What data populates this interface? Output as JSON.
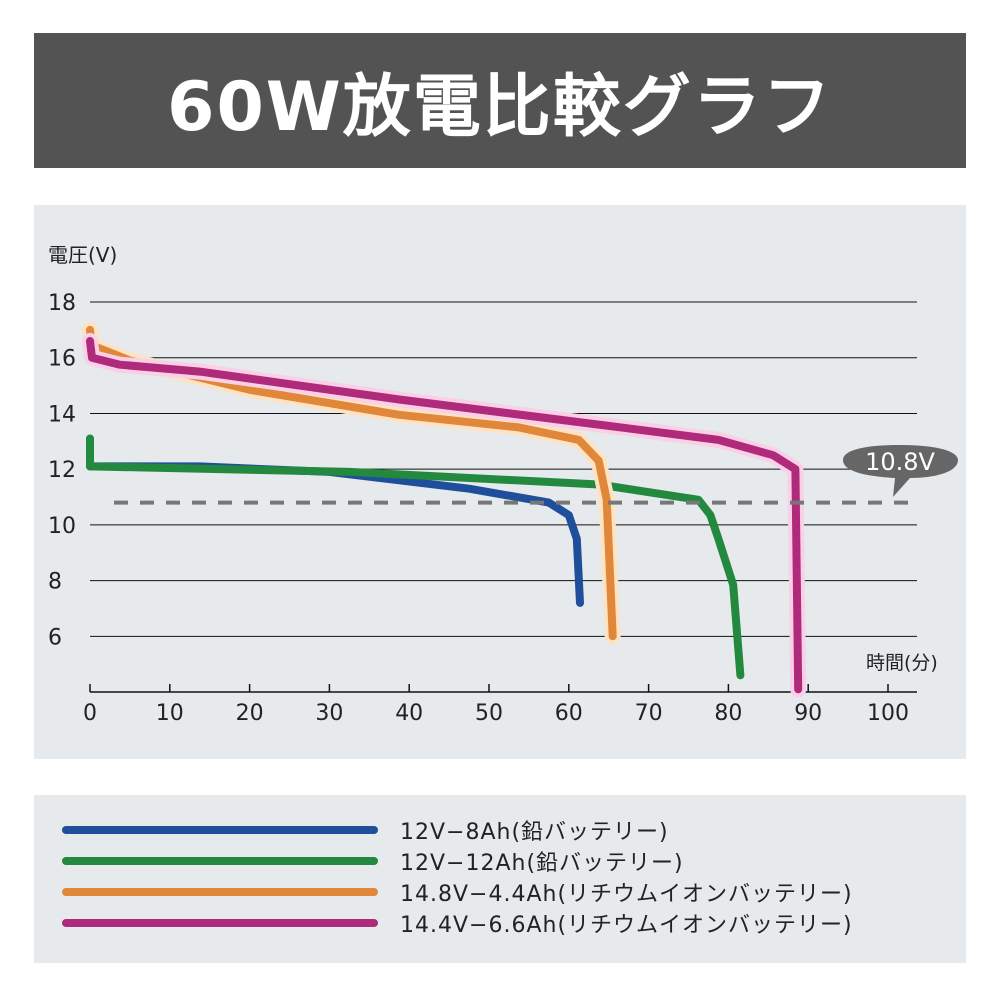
{
  "title": "60W放電比較グラフ",
  "chart_data": {
    "type": "line",
    "ylabel": "電圧(V)",
    "xlabel": "時間(分)",
    "xlim": [
      0,
      100
    ],
    "ylim": [
      4,
      18
    ],
    "xticks": [
      "0",
      "10",
      "20",
      "30",
      "40",
      "50",
      "60",
      "70",
      "80",
      "90",
      "100"
    ],
    "yticks": [
      "6",
      "8",
      "10",
      "12",
      "14",
      "16",
      "18"
    ],
    "grid": "horizontal",
    "reference_line": {
      "y": 10.8,
      "label": "10.8V",
      "color": "#777777"
    },
    "legend_placement": "bottom",
    "series": [
      {
        "name": "12V−8Ah(鉛バッテリー)",
        "color": "#1f4f9a",
        "points": [
          [
            0,
            13.0
          ],
          [
            0,
            12.1
          ],
          [
            13.75,
            12.1
          ],
          [
            30,
            11.9
          ],
          [
            47.5,
            11.3
          ],
          [
            57.5,
            10.8
          ],
          [
            60,
            10.35
          ],
          [
            61,
            9.5
          ],
          [
            61.4,
            7.2
          ]
        ]
      },
      {
        "name": "12V−12Ah(鉛バッテリー)",
        "color": "#23893f",
        "points": [
          [
            0,
            13.1
          ],
          [
            0,
            12.1
          ],
          [
            32.5,
            11.9
          ],
          [
            63.75,
            11.45
          ],
          [
            76.25,
            10.9
          ],
          [
            77.75,
            10.35
          ],
          [
            78.75,
            9.5
          ],
          [
            80.6,
            7.85
          ],
          [
            81.5,
            4.6
          ]
        ]
      },
      {
        "name": "14.8V−4.4Ah(リチウムイオンバッテリー)",
        "color": "#e0873a",
        "points": [
          [
            0,
            17.0
          ],
          [
            0.2,
            16.45
          ],
          [
            5,
            15.9
          ],
          [
            20,
            14.85
          ],
          [
            38.75,
            13.95
          ],
          [
            53.75,
            13.5
          ],
          [
            61.25,
            13.05
          ],
          [
            63.75,
            12.3
          ],
          [
            64.75,
            10.9
          ],
          [
            65.5,
            6.0
          ]
        ]
      },
      {
        "name": "14.4V−6.6Ah(リチウムイオンバッテリー)",
        "color": "#b02a7c",
        "points": [
          [
            0,
            16.6
          ],
          [
            0.25,
            16.0
          ],
          [
            3.75,
            15.75
          ],
          [
            13.75,
            15.5
          ],
          [
            38.75,
            14.5
          ],
          [
            63.75,
            13.6
          ],
          [
            78.75,
            13.05
          ],
          [
            85.6,
            12.5
          ],
          [
            88.4,
            12.0
          ],
          [
            88.75,
            4.1
          ]
        ]
      }
    ]
  },
  "legend": [
    "12V−8Ah(鉛バッテリー)",
    "12V−12Ah(鉛バッテリー)",
    "14.8V−4.4Ah(リチウムイオンバッテリー)",
    "14.4V−6.6Ah(リチウムイオンバッテリー)"
  ]
}
